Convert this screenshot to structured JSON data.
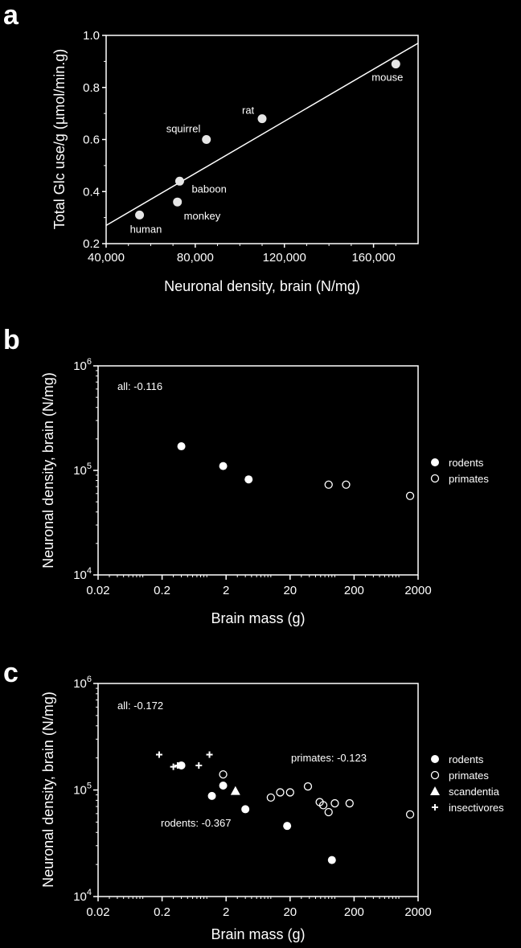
{
  "chart_data": [
    {
      "type": "scatter",
      "panel": "a",
      "xlabel": "Neuronal density, brain (N/mg)",
      "ylabel": "Total Glc use/g (µmol/min.g)",
      "xlim": [
        40000,
        180000
      ],
      "ylim": [
        0.2,
        1.0
      ],
      "xticks": [
        {
          "value": 40000,
          "label": "40,000"
        },
        {
          "value": 80000,
          "label": "80,000"
        },
        {
          "value": 120000,
          "label": "120,000"
        },
        {
          "value": 160000,
          "label": "160,000"
        }
      ],
      "yticks": [
        {
          "value": 0.2,
          "label": "0.2"
        },
        {
          "value": 0.4,
          "label": "0.4"
        },
        {
          "value": 0.6,
          "label": "0.6"
        },
        {
          "value": 0.8,
          "label": "0.8"
        },
        {
          "value": 1.0,
          "label": "1.0"
        }
      ],
      "points": [
        {
          "label": "human",
          "x": 55000,
          "y": 0.31
        },
        {
          "label": "monkey",
          "x": 72000,
          "y": 0.36
        },
        {
          "label": "baboon",
          "x": 73000,
          "y": 0.44
        },
        {
          "label": "squirrel",
          "x": 85000,
          "y": 0.6
        },
        {
          "label": "rat",
          "x": 110000,
          "y": 0.68
        },
        {
          "label": "mouse",
          "x": 170000,
          "y": 0.89
        }
      ],
      "fit_line": {
        "x": [
          40000,
          180000
        ],
        "y": [
          0.27,
          0.97
        ]
      }
    },
    {
      "type": "scatter",
      "panel": "b",
      "xlabel": "Brain mass (g)",
      "ylabel": "Neuronal density, brain (N/mg)",
      "xscale": "log",
      "yscale": "log",
      "xlim": [
        0.02,
        2000
      ],
      "ylim": [
        10000,
        1000000
      ],
      "xticks": [
        {
          "value": 0.02,
          "label": "0.02"
        },
        {
          "value": 0.2,
          "label": "0.2"
        },
        {
          "value": 2,
          "label": "2"
        },
        {
          "value": 20,
          "label": "20"
        },
        {
          "value": 200,
          "label": "200"
        },
        {
          "value": 2000,
          "label": "2000"
        }
      ],
      "yticks": [
        {
          "value": 10000,
          "base": "10",
          "exp": "4"
        },
        {
          "value": 100000,
          "base": "10",
          "exp": "5"
        },
        {
          "value": 1000000,
          "base": "10",
          "exp": "6"
        }
      ],
      "annotation": "all: -0.116",
      "legend": [
        {
          "name": "rodents",
          "marker": "filled-circle"
        },
        {
          "name": "primates",
          "marker": "open-circle"
        }
      ],
      "series": [
        {
          "name": "rodents",
          "points": [
            {
              "x": 0.4,
              "y": 170000
            },
            {
              "x": 1.8,
              "y": 110000
            },
            {
              "x": 4.5,
              "y": 82000
            }
          ]
        },
        {
          "name": "primates",
          "points": [
            {
              "x": 80,
              "y": 73000
            },
            {
              "x": 150,
              "y": 73000
            },
            {
              "x": 1500,
              "y": 57000
            }
          ]
        }
      ]
    },
    {
      "type": "scatter",
      "panel": "c",
      "xlabel": "Brain mass (g)",
      "ylabel": "Neuronal density, brain (N/mg)",
      "xscale": "log",
      "yscale": "log",
      "xlim": [
        0.02,
        2000
      ],
      "ylim": [
        10000,
        1000000
      ],
      "xticks": [
        {
          "value": 0.02,
          "label": "0.02"
        },
        {
          "value": 0.2,
          "label": "0.2"
        },
        {
          "value": 2,
          "label": "2"
        },
        {
          "value": 20,
          "label": "20"
        },
        {
          "value": 200,
          "label": "200"
        },
        {
          "value": 2000,
          "label": "2000"
        }
      ],
      "yticks": [
        {
          "value": 10000,
          "base": "10",
          "exp": "4"
        },
        {
          "value": 100000,
          "base": "10",
          "exp": "5"
        },
        {
          "value": 1000000,
          "base": "10",
          "exp": "6"
        }
      ],
      "annotations": [
        "all: -0.172",
        "primates: -0.123",
        "rodents: -0.367"
      ],
      "legend": [
        {
          "name": "rodents",
          "marker": "filled-circle"
        },
        {
          "name": "primates",
          "marker": "open-circle"
        },
        {
          "name": "scandentia",
          "marker": "triangle"
        },
        {
          "name": "insectivores",
          "marker": "plus"
        }
      ],
      "series": [
        {
          "name": "rodents",
          "points": [
            {
              "x": 0.4,
              "y": 170000
            },
            {
              "x": 1.8,
              "y": 110000
            },
            {
              "x": 1.2,
              "y": 88000
            },
            {
              "x": 4,
              "y": 66000
            },
            {
              "x": 18,
              "y": 46000
            },
            {
              "x": 90,
              "y": 22000
            }
          ]
        },
        {
          "name": "primates",
          "points": [
            {
              "x": 1.8,
              "y": 140000
            },
            {
              "x": 10,
              "y": 85000
            },
            {
              "x": 14,
              "y": 95000
            },
            {
              "x": 20,
              "y": 95000
            },
            {
              "x": 38,
              "y": 108000
            },
            {
              "x": 58,
              "y": 77000
            },
            {
              "x": 66,
              "y": 72000
            },
            {
              "x": 80,
              "y": 62000
            },
            {
              "x": 100,
              "y": 75000
            },
            {
              "x": 170,
              "y": 75000
            },
            {
              "x": 1500,
              "y": 59000
            }
          ]
        },
        {
          "name": "scandentia",
          "points": [
            {
              "x": 2.8,
              "y": 98000
            }
          ]
        },
        {
          "name": "insectivores",
          "points": [
            {
              "x": 0.18,
              "y": 215000
            },
            {
              "x": 0.3,
              "y": 165000
            },
            {
              "x": 0.35,
              "y": 170000
            },
            {
              "x": 0.75,
              "y": 170000
            },
            {
              "x": 1.1,
              "y": 215000
            }
          ]
        }
      ]
    }
  ],
  "panel_labels": [
    "a",
    "b",
    "c"
  ]
}
